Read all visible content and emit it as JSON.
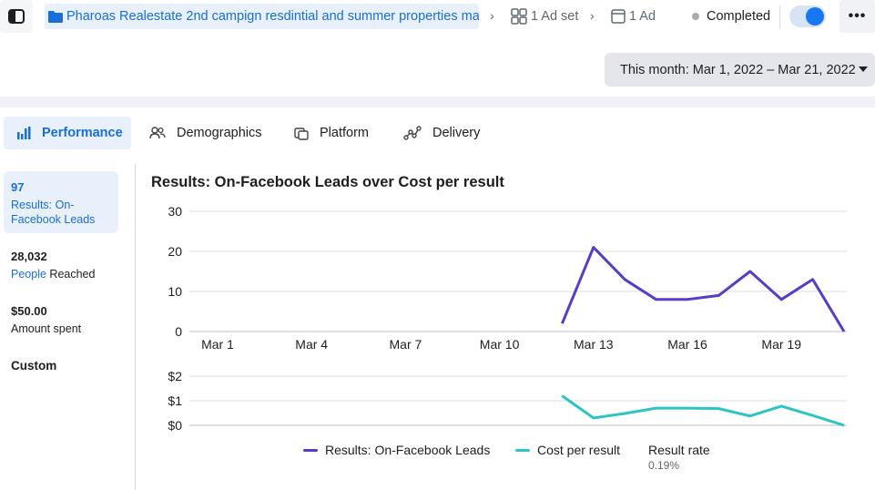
{
  "breadcrumb": {
    "campaign": "Pharoas Realestate 2nd campign resdintial and summer properties ma...",
    "ad_set": "1 Ad set",
    "ad": "1 Ad"
  },
  "status": {
    "label": "Completed",
    "toggle_on": true
  },
  "date_range": {
    "label": "This month: Mar 1, 2022 – Mar 21, 2022"
  },
  "tabs": [
    {
      "label": "Performance",
      "icon": "bar-chart-icon",
      "active": true
    },
    {
      "label": "Demographics",
      "icon": "people-icon",
      "active": false
    },
    {
      "label": "Platform",
      "icon": "platform-icon",
      "active": false
    },
    {
      "label": "Delivery",
      "icon": "delivery-icon",
      "active": false
    }
  ],
  "metrics": [
    {
      "value": "97",
      "label": "Results: On-Facebook Leads",
      "active": true
    },
    {
      "value": "28,032",
      "label_prefix": "People",
      "label_suffix": " Reached",
      "active": false
    },
    {
      "value": "$50.00",
      "label": "Amount spent",
      "active": false
    }
  ],
  "custom_label": "Custom",
  "colors": {
    "accent": "#1a6ed8",
    "leads": "#5b3cc4",
    "cost": "#2ec4c4"
  },
  "chart_data": {
    "type": "line",
    "title": "Results: On-Facebook Leads over Cost per result",
    "x_ticks": [
      "Mar 1",
      "Mar 4",
      "Mar 7",
      "Mar 10",
      "Mar 13",
      "Mar 16",
      "Mar 19"
    ],
    "top_y_ticks": [
      "30",
      "20",
      "10",
      "0"
    ],
    "top_ylim": [
      0,
      30
    ],
    "bottom_y_ticks": [
      "$2",
      "$1",
      "$0"
    ],
    "bottom_ylim": [
      0,
      2
    ],
    "x": [
      "Mar 12",
      "Mar 13",
      "Mar 14",
      "Mar 15",
      "Mar 16",
      "Mar 17",
      "Mar 18",
      "Mar 19",
      "Mar 20",
      "Mar 21"
    ],
    "series": [
      {
        "name": "Results: On-Facebook Leads",
        "values": [
          2,
          21,
          13,
          8,
          8,
          9,
          15,
          8,
          13,
          0
        ]
      },
      {
        "name": "Cost per result",
        "values": [
          1.2,
          0.3,
          0.48,
          0.7,
          0.7,
          0.68,
          0.38,
          0.78,
          0.4,
          0.0
        ]
      }
    ],
    "extra_legend": {
      "name": "Result rate",
      "value": "0.19%"
    }
  }
}
